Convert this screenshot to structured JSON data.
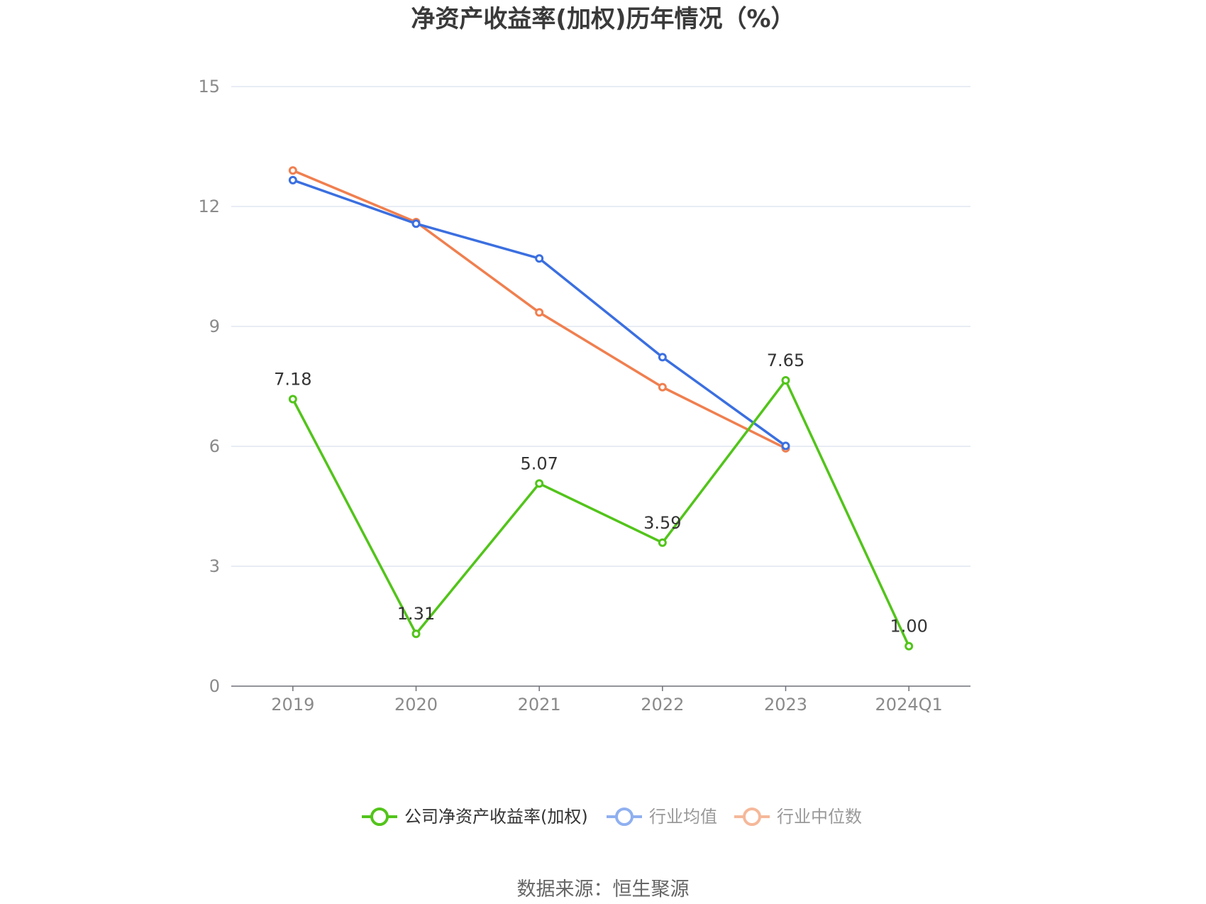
{
  "chart_data": {
    "type": "line",
    "title": "净资产收益率(加权)历年情况（%）",
    "categories": [
      "2019",
      "2020",
      "2021",
      "2022",
      "2023",
      "2024Q1"
    ],
    "ylim": [
      0,
      15
    ],
    "yticks": [
      "0",
      "3",
      "6",
      "9",
      "12",
      "15"
    ],
    "grid": true,
    "legend_position": "bottom",
    "series": [
      {
        "name": "公司净资产收益率(加权)",
        "color": "#52c41a",
        "values": [
          7.18,
          1.31,
          5.07,
          3.59,
          7.65,
          1.0
        ],
        "labels": [
          "7.18",
          "1.31",
          "5.07",
          "3.59",
          "7.65",
          "1.00"
        ]
      },
      {
        "name": "行业均值",
        "color": "#3b6fe0",
        "values": [
          12.66,
          11.57,
          10.7,
          8.23,
          6.01,
          null
        ]
      },
      {
        "name": "行业中位数",
        "color": "#f07f4f",
        "values": [
          12.9,
          11.61,
          9.35,
          7.48,
          5.95,
          null
        ]
      }
    ],
    "legend_colors": [
      "#52c41a",
      "#8fb0f0",
      "#f5b89a"
    ],
    "source": "数据来源：恒生聚源"
  }
}
